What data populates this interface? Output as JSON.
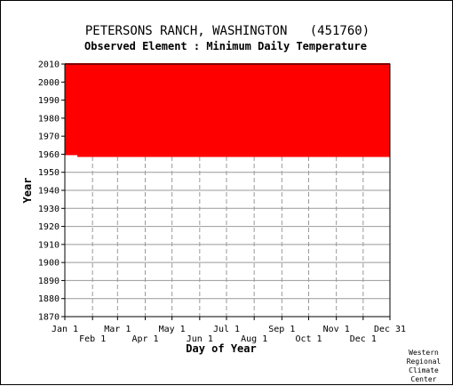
{
  "chart_data": {
    "type": "area",
    "title": "PETERSONS RANCH, WASHINGTON   (451760)",
    "subtitle": "Observed Element : Minimum Daily Temperature",
    "xlabel": "Day of Year",
    "ylabel": "Year",
    "ylim": [
      1870,
      2010
    ],
    "y_ticks": [
      1870,
      1880,
      1890,
      1900,
      1910,
      1920,
      1930,
      1940,
      1950,
      1960,
      1970,
      1980,
      1990,
      2000,
      2010
    ],
    "x_ticks_upper": [
      "Jan 1",
      "Mar 1",
      "May 1",
      "Jul 1",
      "Sep 1",
      "Nov 1",
      "Dec 31"
    ],
    "x_ticks_lower": [
      "Feb 1",
      "Apr 1",
      "Jun 1",
      "Aug 1",
      "Oct 1",
      "Dec 1"
    ],
    "month_start_days": [
      1,
      32,
      60,
      91,
      121,
      152,
      182,
      213,
      244,
      274,
      305,
      335,
      365
    ],
    "grid": true,
    "series": [
      {
        "fill_color": "#ff0000",
        "year_start": 1958.5,
        "year_end": 2010.5,
        "first_year_start_day": 15
      }
    ],
    "credit": [
      "Western",
      "Regional",
      "Climate",
      "Center"
    ]
  }
}
